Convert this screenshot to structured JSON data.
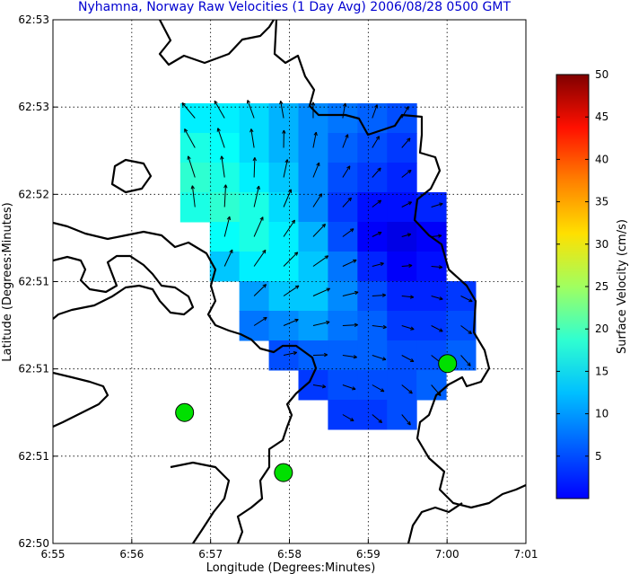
{
  "chart_data": {
    "type": "heatmap",
    "title": "Nyhamna, Norway Raw Velocities (1 Day Avg) 2006/08/28 0500 GMT",
    "xlabel": "Longitude (Degrees:Minutes)",
    "ylabel": "Latitude (Degrees:Minutes)",
    "x_ticks": [
      "6:55",
      "6:56",
      "6:57",
      "6:58",
      "6:59",
      "7:00",
      "7:01"
    ],
    "y_ticks": [
      "62:50",
      "62:51",
      "62:51",
      "62:51",
      "62:52",
      "62:53",
      "62:53"
    ],
    "colorbar": {
      "label": "Surface Velocity (cm/s)",
      "ticks": [
        5,
        10,
        15,
        20,
        25,
        30,
        35,
        40,
        45,
        50
      ],
      "range": [
        0,
        50
      ],
      "colormap": "jet"
    },
    "grid": true,
    "sites": [
      {
        "lon": 6.9445,
        "lat": 62.8475
      },
      {
        "lon": 6.9654,
        "lat": 62.841
      },
      {
        "lon": 7.0001,
        "lat": 62.8528
      }
    ],
    "velocity_field_cm_s": [
      [
        null,
        null,
        18,
        18,
        17,
        15,
        13,
        12,
        11,
        10,
        null,
        null
      ],
      [
        null,
        null,
        20,
        19,
        17,
        15,
        13,
        11,
        10,
        9,
        null,
        null
      ],
      [
        null,
        null,
        21,
        20,
        18,
        16,
        13,
        10,
        9,
        8,
        null,
        null
      ],
      [
        null,
        null,
        20,
        21,
        20,
        17,
        13,
        9,
        7,
        7,
        8,
        null
      ],
      [
        null,
        null,
        null,
        19,
        20,
        18,
        15,
        10,
        6,
        5,
        6,
        null
      ],
      [
        null,
        null,
        null,
        16,
        18,
        18,
        16,
        12,
        8,
        6,
        7,
        null
      ],
      [
        null,
        null,
        null,
        null,
        14,
        16,
        16,
        13,
        10,
        8,
        8,
        9
      ],
      [
        null,
        null,
        null,
        null,
        12,
        13,
        14,
        12,
        11,
        9,
        9,
        10
      ],
      [
        null,
        null,
        null,
        null,
        null,
        10,
        11,
        11,
        11,
        10,
        10,
        11
      ],
      [
        null,
        null,
        null,
        null,
        null,
        null,
        9,
        10,
        10,
        10,
        11,
        null
      ],
      [
        null,
        null,
        null,
        null,
        null,
        null,
        null,
        9,
        9,
        10,
        null,
        null
      ]
    ],
    "vector_direction": "mostly north-west in the west of the domain, turning south/south-east towards the south-east"
  },
  "colors": {
    "title": "#0000d0",
    "coastline": "#000000",
    "site_marker": "#00e000"
  }
}
